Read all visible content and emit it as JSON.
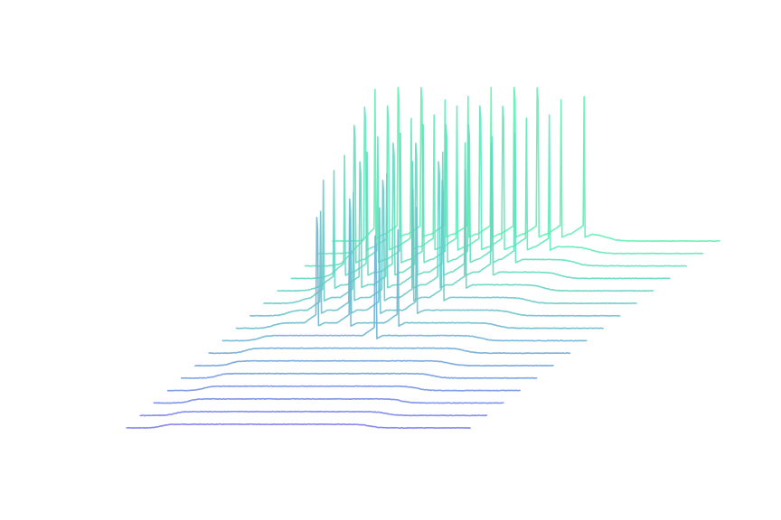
{
  "chart_data": {
    "type": "line",
    "style": "waterfall",
    "axes_visible": false,
    "grid": false,
    "legend": "none",
    "color_start": "#7b7bf0",
    "color_end": "#5ef0b4",
    "x_range": [
      0,
      1
    ],
    "series": [
      {
        "step": 0,
        "spikes": []
      },
      {
        "step": 1,
        "spikes": []
      },
      {
        "step": 2,
        "spikes": []
      },
      {
        "step": 3,
        "spikes": []
      },
      {
        "step": 4,
        "spikes": []
      },
      {
        "step": 5,
        "spikes": []
      },
      {
        "step": 6,
        "spikes": []
      },
      {
        "step": 7,
        "spikes": [
          0.42
        ]
      },
      {
        "step": 8,
        "spikes": [
          0.22,
          0.31,
          0.44
        ]
      },
      {
        "step": 9,
        "spikes": [
          0.19,
          0.27,
          0.35,
          0.45
        ]
      },
      {
        "step": 10,
        "spikes": [
          0.16,
          0.24,
          0.32,
          0.4,
          0.48
        ]
      },
      {
        "step": 11,
        "spikes": [
          0.15,
          0.22,
          0.29,
          0.36,
          0.43,
          0.5
        ]
      },
      {
        "step": 12,
        "spikes": [
          0.14,
          0.2,
          0.27,
          0.33,
          0.4,
          0.46,
          0.53
        ]
      },
      {
        "step": 13,
        "spikes": [
          0.13,
          0.19,
          0.25,
          0.31,
          0.37,
          0.43,
          0.49,
          0.55
        ]
      },
      {
        "step": 14,
        "spikes": [
          0.12,
          0.18,
          0.24,
          0.3,
          0.36,
          0.42,
          0.48,
          0.54,
          0.6
        ]
      },
      {
        "step": 15,
        "spikes": [
          0.11,
          0.17,
          0.23,
          0.29,
          0.35,
          0.41,
          0.47,
          0.53,
          0.59,
          0.65
        ]
      }
    ]
  }
}
